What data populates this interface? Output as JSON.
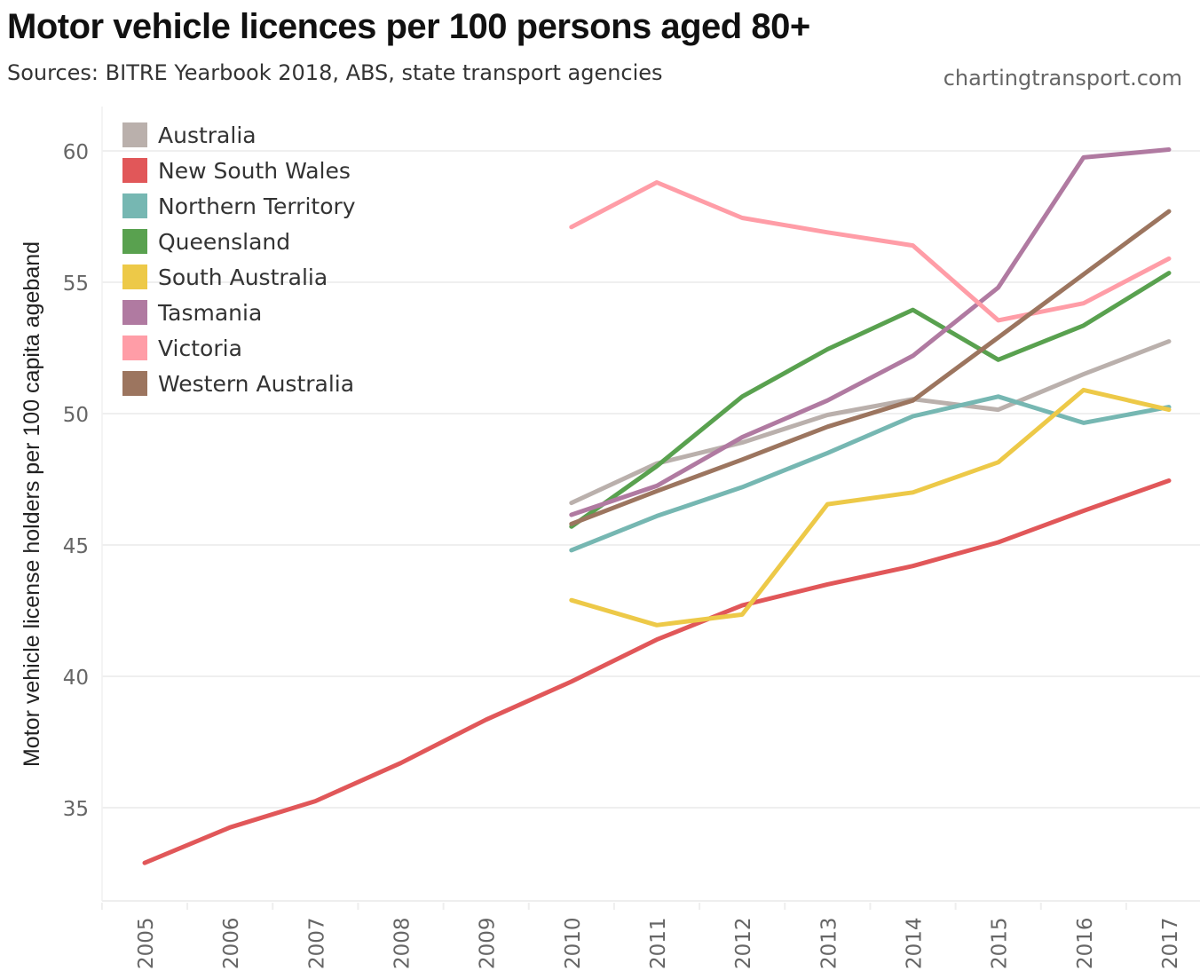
{
  "header": {
    "title": "Motor vehicle licences per 100 persons aged 80+",
    "subtitle": "Sources: BITRE Yearbook 2018, ABS, state transport agencies",
    "credit": "chartingtransport.com"
  },
  "chart_data": {
    "type": "line",
    "title": "Motor vehicle licences per 100 persons aged 80+",
    "subtitle": "Sources: BITRE Yearbook 2018, ABS, state transport agencies",
    "xlabel": "",
    "ylabel": "Motor vehicle license holders per 100 capita ageband",
    "x": [
      2005,
      2006,
      2007,
      2008,
      2009,
      2010,
      2011,
      2012,
      2013,
      2014,
      2015,
      2016,
      2017
    ],
    "x_tick_labels": [
      "2005",
      "2006",
      "2007",
      "2008",
      "2009",
      "2010",
      "2011",
      "2012",
      "2013",
      "2014",
      "2015",
      "2016",
      "2017"
    ],
    "y_ticks": [
      35,
      40,
      45,
      50,
      55,
      60
    ],
    "y_tick_labels": [
      "35",
      "40",
      "45",
      "50",
      "55",
      "60"
    ],
    "ylim": [
      31.5,
      62.0
    ],
    "grid": true,
    "legend_position": "top-left",
    "series": [
      {
        "name": "Australia",
        "color": "#bab0ac",
        "values": [
          null,
          null,
          null,
          null,
          null,
          46.6,
          48.1,
          48.9,
          49.95,
          50.55,
          50.15,
          51.5,
          52.75
        ]
      },
      {
        "name": "New South Wales",
        "color": "#e15759",
        "values": [
          32.9,
          34.25,
          35.25,
          36.7,
          38.35,
          39.8,
          41.4,
          42.7,
          43.5,
          44.2,
          45.1,
          46.3,
          47.45
        ]
      },
      {
        "name": "Northern Territory",
        "color": "#76b7b2",
        "values": [
          null,
          null,
          null,
          null,
          null,
          44.8,
          46.1,
          47.2,
          48.5,
          49.9,
          50.65,
          49.65,
          50.25
        ]
      },
      {
        "name": "Queensland",
        "color": "#59a14f",
        "values": [
          null,
          null,
          null,
          null,
          null,
          45.7,
          48.0,
          50.65,
          52.45,
          53.95,
          52.05,
          53.35,
          55.35
        ]
      },
      {
        "name": "South Australia",
        "color": "#edc948",
        "values": [
          null,
          null,
          null,
          null,
          null,
          42.9,
          41.95,
          42.35,
          46.55,
          47.0,
          48.15,
          50.9,
          50.15
        ]
      },
      {
        "name": "Tasmania",
        "color": "#b07aa1",
        "values": [
          null,
          null,
          null,
          null,
          null,
          46.15,
          47.25,
          49.1,
          50.5,
          52.2,
          54.8,
          59.75,
          60.05
        ]
      },
      {
        "name": "Victoria",
        "color": "#ff9da7",
        "values": [
          null,
          null,
          null,
          null,
          null,
          57.1,
          58.8,
          57.45,
          56.9,
          56.4,
          53.55,
          54.2,
          55.9
        ]
      },
      {
        "name": "Western Australia",
        "color": "#9c755f",
        "values": [
          null,
          null,
          null,
          null,
          null,
          45.8,
          47.05,
          48.25,
          49.5,
          50.5,
          52.9,
          55.3,
          57.7
        ]
      }
    ]
  }
}
